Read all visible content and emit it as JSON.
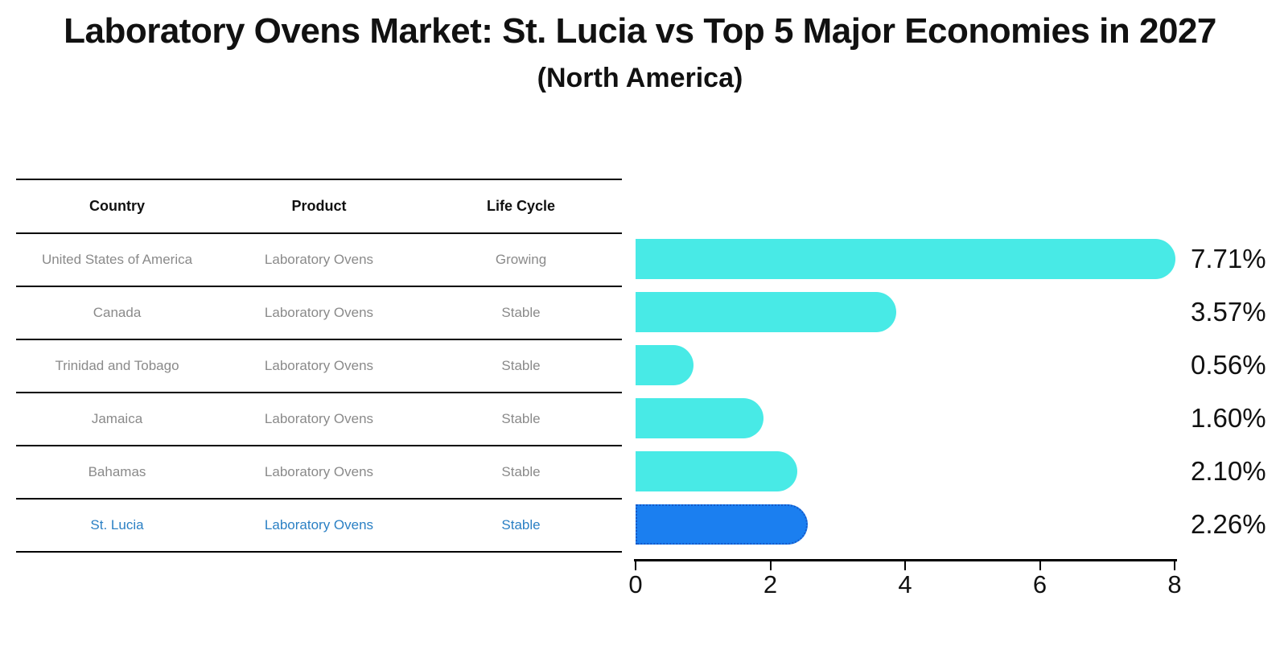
{
  "title": "Laboratory Ovens Market: St. Lucia vs Top 5 Major Economies in 2027",
  "subtitle": "(North America)",
  "table": {
    "headers": [
      "Country",
      "Product",
      "Life Cycle"
    ],
    "rows": [
      {
        "country": "United States of America",
        "product": "Laboratory Ovens",
        "life_cycle": "Growing"
      },
      {
        "country": "Canada",
        "product": "Laboratory Ovens",
        "life_cycle": "Stable"
      },
      {
        "country": "Trinidad and Tobago",
        "product": "Laboratory Ovens",
        "life_cycle": "Stable"
      },
      {
        "country": "Jamaica",
        "product": "Laboratory Ovens",
        "life_cycle": "Stable"
      },
      {
        "country": "Bahamas",
        "product": "Laboratory Ovens",
        "life_cycle": "Stable"
      },
      {
        "country": "St. Lucia",
        "product": "Laboratory Ovens",
        "life_cycle": "Stable"
      }
    ]
  },
  "chart_data": {
    "type": "bar",
    "orientation": "horizontal",
    "title": "Laboratory Ovens Market: St. Lucia vs Top 5 Major Economies in 2027",
    "subtitle": "(North America)",
    "categories": [
      "United States of America",
      "Canada",
      "Trinidad and Tobago",
      "Jamaica",
      "Bahamas",
      "St. Lucia"
    ],
    "values": [
      7.71,
      3.57,
      0.56,
      1.6,
      2.1,
      2.26
    ],
    "labels": [
      "7.71%",
      "3.57%",
      "0.56%",
      "1.60%",
      "2.10%",
      "2.26%"
    ],
    "xticks": [
      "0",
      "2",
      "4",
      "6",
      "8"
    ],
    "xlim": [
      0,
      8
    ],
    "grid": false,
    "legend": false,
    "bar_color": "#48eae6",
    "highlight_index": 5,
    "highlight_color": "#1b7ff0",
    "highlight_border_color": "#1559c8"
  },
  "colors": {
    "text_muted": "#8a8a8a",
    "highlight_text": "#2b80c4",
    "axis": "#000000"
  }
}
